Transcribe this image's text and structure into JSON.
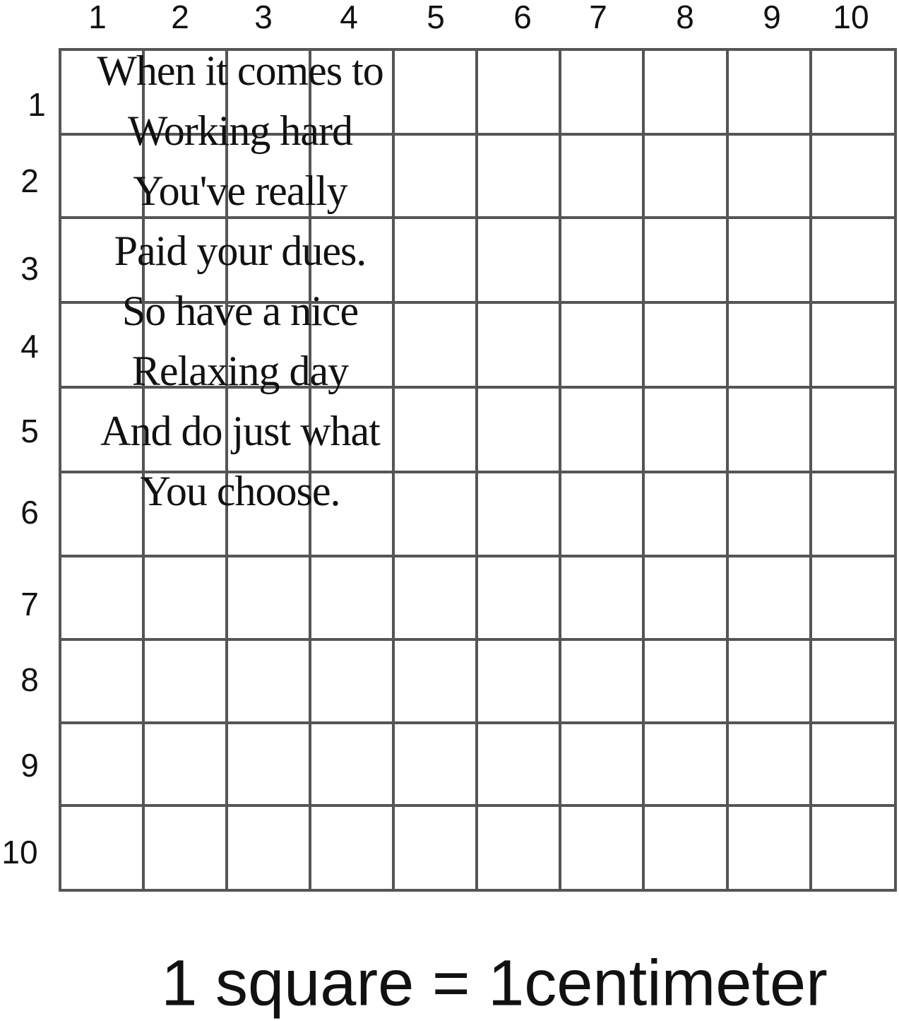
{
  "grid": {
    "columns": [
      "1",
      "2",
      "3",
      "4",
      "5",
      "6",
      "7",
      "8",
      "9",
      "10"
    ],
    "rows": [
      "1",
      "2",
      "3",
      "4",
      "5",
      "6",
      "7",
      "8",
      "9",
      "10"
    ],
    "line_color": "#555555"
  },
  "poem": [
    "When it comes to",
    "Working hard",
    "You've really",
    "Paid your dues.",
    "So have a nice",
    "Relaxing day",
    "And do just what",
    "You choose."
  ],
  "scale_note": "1 square = 1centimeter"
}
